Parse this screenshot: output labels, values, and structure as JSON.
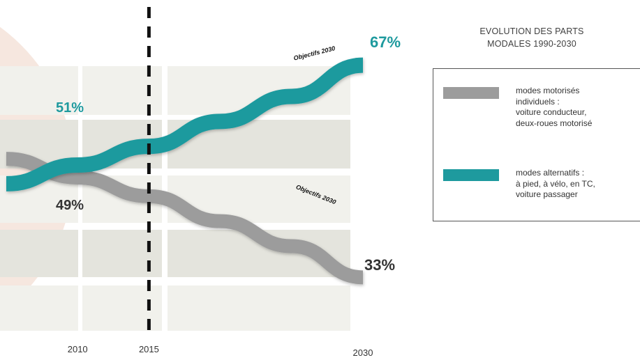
{
  "chart_data": {
    "type": "line",
    "title": "",
    "x": [
      2010,
      2015,
      2030
    ],
    "xlim": [
      2005,
      2032
    ],
    "ylim": [
      25,
      75
    ],
    "x_tick_labels": [
      "2010",
      "2015",
      "2030"
    ],
    "grid": "horizontal bands",
    "legend_placement": "right",
    "series": [
      {
        "key": "alternatifs",
        "start_label": "51%",
        "end_label": "67%",
        "annotation": "Objectifs 2030",
        "color": "#1e9a9e",
        "points": [
          [
            2005,
            48
          ],
          [
            2010,
            51
          ],
          [
            2015,
            54
          ],
          [
            2020,
            58
          ],
          [
            2025,
            62
          ],
          [
            2030,
            67
          ]
        ]
      },
      {
        "key": "motorises",
        "start_label": "49%",
        "end_label": "33%",
        "annotation": "Objectifs 2030",
        "color": "#9c9c9c",
        "points": [
          [
            2005,
            52
          ],
          [
            2010,
            49
          ],
          [
            2015,
            46
          ],
          [
            2020,
            42
          ],
          [
            2025,
            38
          ],
          [
            2030,
            33
          ]
        ]
      }
    ],
    "marker_year": 2015
  },
  "legend": {
    "title_lines": [
      "EVOLUTION DES PARTS",
      "MODALES 1990-2030"
    ],
    "items": [
      {
        "color": "#9c9c9c",
        "lines": [
          "modes motorisés",
          "individuels :",
          "voiture conducteur,",
          "deux-roues motorisé"
        ]
      },
      {
        "color": "#1e9a9e",
        "lines": [
          "modes alternatifs :",
          "à pied, à vélo, en TC,",
          "voiture passager"
        ]
      }
    ]
  },
  "colors": {
    "background_circle": "#f6e7df",
    "band_light": "#f1f1ec",
    "band_mid": "#e4e4dd",
    "marker": "#111111"
  }
}
